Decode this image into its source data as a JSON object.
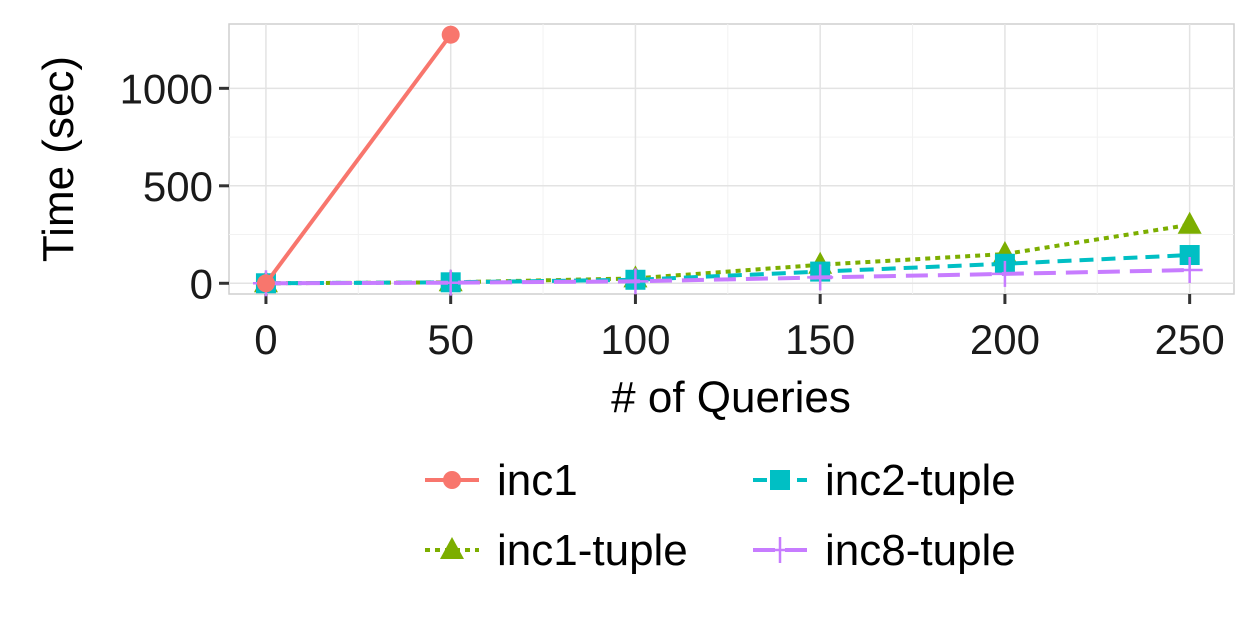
{
  "chart_data": {
    "type": "line",
    "xlabel": "# of Queries",
    "ylabel": "Time (sec)",
    "xlim": [
      -10,
      262
    ],
    "ylim": [
      -55,
      1330
    ],
    "x_ticks": [
      0,
      50,
      100,
      150,
      200,
      250
    ],
    "y_ticks": [
      0,
      500,
      1000
    ],
    "grid": true,
    "legend_position": "bottom",
    "series": [
      {
        "name": "inc1",
        "color": "#F8766D",
        "dash": "solid",
        "marker": "circle",
        "x": [
          0,
          50
        ],
        "y": [
          0,
          1275
        ]
      },
      {
        "name": "inc1-tuple",
        "color": "#7CAE00",
        "dash": "dotted",
        "marker": "triangle",
        "x": [
          0,
          50,
          100,
          150,
          200,
          250
        ],
        "y": [
          0,
          5,
          25,
          95,
          150,
          300
        ]
      },
      {
        "name": "inc2-tuple",
        "color": "#00BFC4",
        "dash": "dashed",
        "marker": "square",
        "x": [
          0,
          50,
          100,
          150,
          200,
          250
        ],
        "y": [
          0,
          5,
          18,
          60,
          100,
          145
        ]
      },
      {
        "name": "inc8-tuple",
        "color": "#C77CFF",
        "dash": "longdash",
        "marker": "plus",
        "x": [
          0,
          50,
          100,
          150,
          200,
          250
        ],
        "y": [
          0,
          3,
          10,
          30,
          48,
          68
        ]
      }
    ]
  }
}
